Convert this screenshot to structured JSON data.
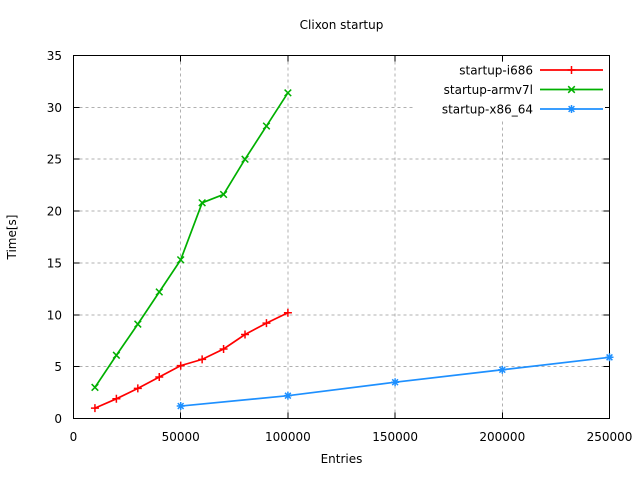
{
  "chart_data": {
    "type": "line",
    "title": "Clixon startup",
    "xlabel": "Entries",
    "ylabel": "Time[s]",
    "xlim": [
      0,
      250000
    ],
    "ylim": [
      0,
      35
    ],
    "xticks": [
      0,
      50000,
      100000,
      150000,
      200000,
      250000
    ],
    "yticks": [
      0,
      5,
      10,
      15,
      20,
      25,
      30,
      35
    ],
    "grid": true,
    "legend_position": "top-right-inside",
    "background_color": "#ffffff",
    "axis_color": "#000000",
    "grid_color": "#b0b0b0",
    "series": [
      {
        "name": "startup-i686",
        "color": "#ff0000",
        "marker": "plus",
        "x": [
          10000,
          20000,
          30000,
          40000,
          50000,
          60000,
          70000,
          80000,
          90000,
          100000
        ],
        "y": [
          1.0,
          1.9,
          2.9,
          4.0,
          5.1,
          5.7,
          6.7,
          8.1,
          9.2,
          10.2
        ]
      },
      {
        "name": "startup-armv7l",
        "color": "#00b000",
        "marker": "cross",
        "x": [
          10000,
          20000,
          30000,
          40000,
          50000,
          60000,
          70000,
          80000,
          90000,
          100000
        ],
        "y": [
          3.0,
          6.1,
          9.1,
          12.2,
          15.3,
          20.8,
          21.6,
          25.0,
          28.2,
          31.4
        ]
      },
      {
        "name": "startup-x86_64",
        "color": "#1e90ff",
        "marker": "asterisk",
        "x": [
          50000,
          100000,
          150000,
          200000,
          250000
        ],
        "y": [
          1.2,
          2.2,
          3.5,
          4.7,
          5.9
        ]
      }
    ]
  }
}
